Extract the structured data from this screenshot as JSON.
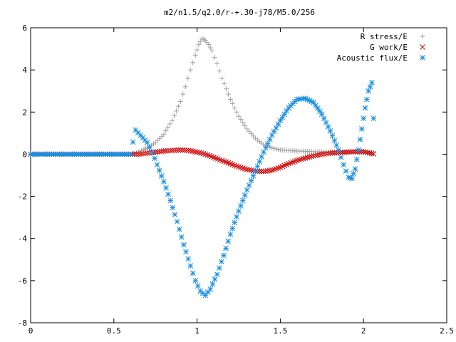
{
  "chart_data": {
    "type": "scatter",
    "title": "m2/n1.5/q2.0/r-+.30-j78/M5.0/256",
    "xlabel": "",
    "ylabel": "",
    "xlim": [
      0,
      2.5
    ],
    "ylim": [
      -8,
      6
    ],
    "x_ticks": [
      "0",
      "0.5",
      "1",
      "1.5",
      "2",
      "2.5"
    ],
    "y_ticks": [
      "-8",
      "-6",
      "-4",
      "-2",
      "0",
      "2",
      "4",
      "6"
    ],
    "grid": false,
    "legend_position": "top-right",
    "series": [
      {
        "name": "R stress/E",
        "color": "#a0a0a0",
        "marker": "plus",
        "points": [
          [
            0.0,
            0
          ],
          [
            0.1,
            0
          ],
          [
            0.2,
            0
          ],
          [
            0.3,
            0
          ],
          [
            0.4,
            0
          ],
          [
            0.5,
            0
          ],
          [
            0.6,
            0
          ],
          [
            0.62,
            0.05
          ],
          [
            0.65,
            0.12
          ],
          [
            0.68,
            0.22
          ],
          [
            0.7,
            0.3
          ],
          [
            0.75,
            0.55
          ],
          [
            0.8,
            0.95
          ],
          [
            0.85,
            1.6
          ],
          [
            0.9,
            2.5
          ],
          [
            0.93,
            3.2
          ],
          [
            0.96,
            4.0
          ],
          [
            0.99,
            4.7
          ],
          [
            1.01,
            5.2
          ],
          [
            1.03,
            5.5
          ],
          [
            1.05,
            5.4
          ],
          [
            1.07,
            5.2
          ],
          [
            1.09,
            4.9
          ],
          [
            1.12,
            4.3
          ],
          [
            1.15,
            3.6
          ],
          [
            1.2,
            2.6
          ],
          [
            1.25,
            1.8
          ],
          [
            1.3,
            1.2
          ],
          [
            1.35,
            0.75
          ],
          [
            1.4,
            0.45
          ],
          [
            1.45,
            0.3
          ],
          [
            1.5,
            0.2
          ],
          [
            1.6,
            0.15
          ],
          [
            1.7,
            0.12
          ],
          [
            1.8,
            0.11
          ],
          [
            1.9,
            0.1
          ],
          [
            2.0,
            0.08
          ],
          [
            2.06,
            0.06
          ]
        ]
      },
      {
        "name": "G work/E",
        "color": "#cc0000",
        "marker": "cross",
        "points": [
          [
            0.0,
            0
          ],
          [
            0.1,
            0
          ],
          [
            0.2,
            0
          ],
          [
            0.3,
            0
          ],
          [
            0.4,
            0
          ],
          [
            0.5,
            0
          ],
          [
            0.6,
            0
          ],
          [
            0.65,
            0.0
          ],
          [
            0.7,
            0.05
          ],
          [
            0.75,
            0.1
          ],
          [
            0.8,
            0.15
          ],
          [
            0.85,
            0.18
          ],
          [
            0.9,
            0.2
          ],
          [
            0.95,
            0.18
          ],
          [
            1.0,
            0.1
          ],
          [
            1.05,
            0.0
          ],
          [
            1.1,
            -0.15
          ],
          [
            1.15,
            -0.3
          ],
          [
            1.2,
            -0.45
          ],
          [
            1.25,
            -0.6
          ],
          [
            1.3,
            -0.72
          ],
          [
            1.35,
            -0.8
          ],
          [
            1.4,
            -0.82
          ],
          [
            1.45,
            -0.76
          ],
          [
            1.5,
            -0.62
          ],
          [
            1.55,
            -0.45
          ],
          [
            1.6,
            -0.3
          ],
          [
            1.65,
            -0.18
          ],
          [
            1.7,
            -0.08
          ],
          [
            1.75,
            0.0
          ],
          [
            1.8,
            0.05
          ],
          [
            1.85,
            0.08
          ],
          [
            1.9,
            0.1
          ],
          [
            1.95,
            0.12
          ],
          [
            2.0,
            0.12
          ],
          [
            2.06,
            0.02
          ]
        ]
      },
      {
        "name": "Acoustic flux/E",
        "color": "#1a8fe0",
        "marker": "star",
        "points": [
          [
            0.0,
            0
          ],
          [
            0.1,
            0
          ],
          [
            0.2,
            0
          ],
          [
            0.3,
            0
          ],
          [
            0.4,
            0
          ],
          [
            0.5,
            0
          ],
          [
            0.6,
            0
          ],
          [
            0.63,
            1.15
          ],
          [
            0.66,
            0.9
          ],
          [
            0.7,
            0.55
          ],
          [
            0.73,
            0.1
          ],
          [
            0.76,
            -0.5
          ],
          [
            0.8,
            -1.3
          ],
          [
            0.84,
            -2.2
          ],
          [
            0.88,
            -3.2
          ],
          [
            0.92,
            -4.3
          ],
          [
            0.96,
            -5.3
          ],
          [
            0.99,
            -6.0
          ],
          [
            1.02,
            -6.5
          ],
          [
            1.05,
            -6.7
          ],
          [
            1.08,
            -6.4
          ],
          [
            1.12,
            -5.7
          ],
          [
            1.16,
            -4.8
          ],
          [
            1.2,
            -3.8
          ],
          [
            1.25,
            -2.7
          ],
          [
            1.3,
            -1.7
          ],
          [
            1.35,
            -0.8
          ],
          [
            1.4,
            0.1
          ],
          [
            1.45,
            0.9
          ],
          [
            1.5,
            1.6
          ],
          [
            1.55,
            2.2
          ],
          [
            1.6,
            2.6
          ],
          [
            1.65,
            2.65
          ],
          [
            1.7,
            2.45
          ],
          [
            1.75,
            1.9
          ],
          [
            1.8,
            1.1
          ],
          [
            1.85,
            0.2
          ],
          [
            1.88,
            -0.5
          ],
          [
            1.91,
            -1.1
          ],
          [
            1.93,
            -1.15
          ],
          [
            1.95,
            -0.7
          ],
          [
            1.97,
            0.2
          ],
          [
            1.99,
            1.2
          ],
          [
            2.01,
            2.2
          ],
          [
            2.03,
            3.0
          ],
          [
            2.05,
            3.4
          ],
          [
            2.06,
            1.7
          ]
        ]
      }
    ]
  }
}
